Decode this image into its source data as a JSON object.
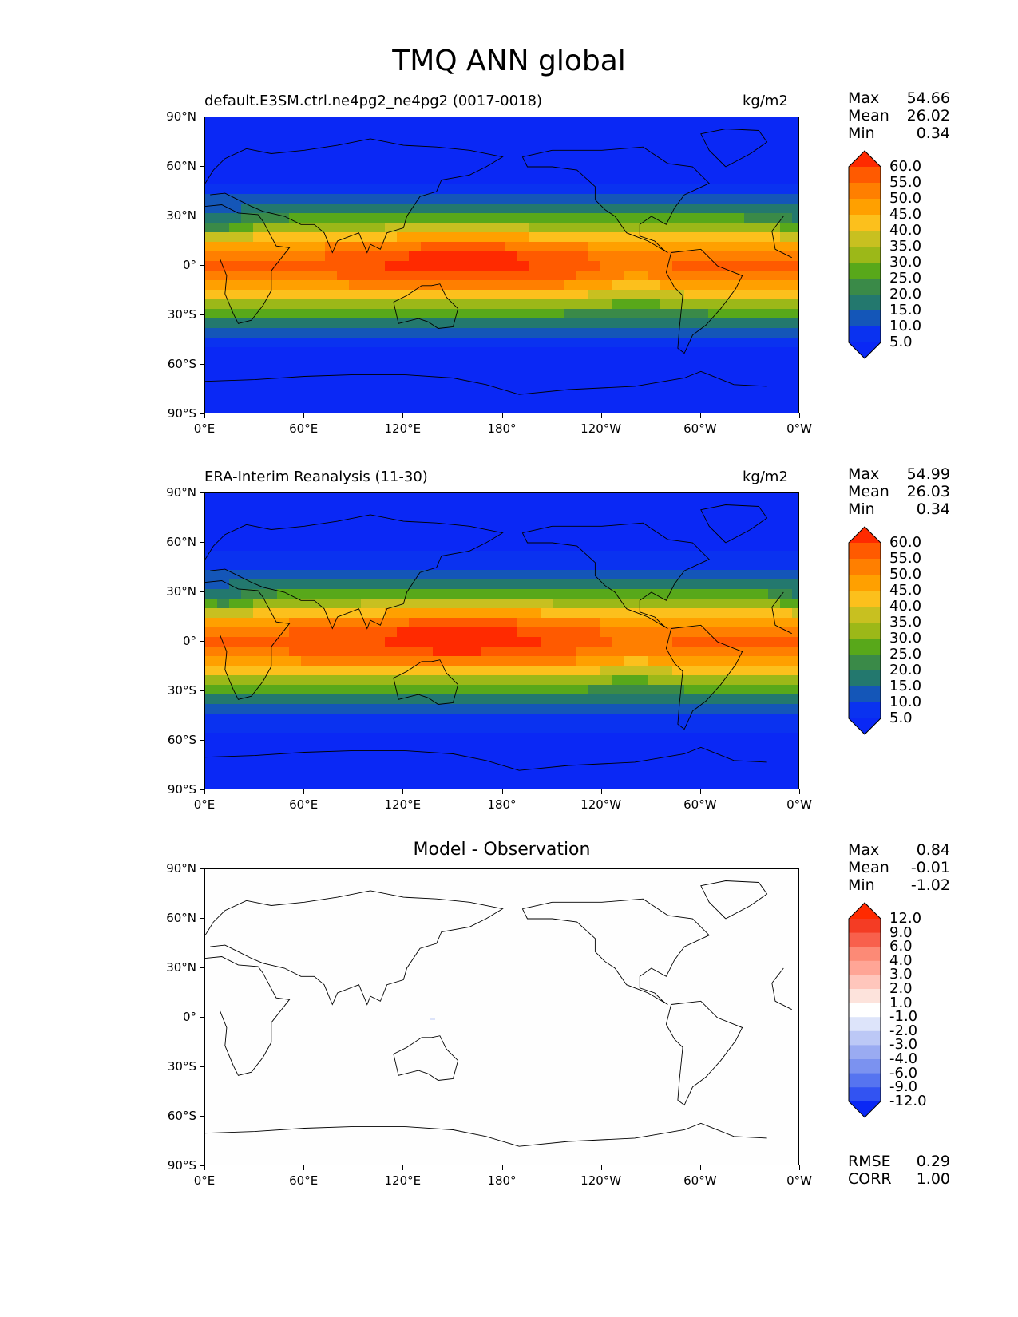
{
  "figure": {
    "title": "TMQ ANN global"
  },
  "axes": {
    "lat_ticks": [
      "90°N",
      "60°N",
      "30°N",
      "0°",
      "30°S",
      "60°S",
      "90°S"
    ],
    "lon_ticks": [
      "0°E",
      "60°E",
      "120°E",
      "180°",
      "120°W",
      "60°W",
      "0°W"
    ]
  },
  "panels": [
    {
      "id": "model",
      "title": "default.E3SM.ctrl.ne4pg2_ne4pg2 (0017-0018)",
      "units": "kg/m2",
      "stats": {
        "max_label": "Max",
        "max": "54.66",
        "mean_label": "Mean",
        "mean": "26.02",
        "min_label": "Min",
        "min": "0.34"
      }
    },
    {
      "id": "obs",
      "title": "ERA-Interim Reanalysis (11-30)",
      "units": "kg/m2",
      "stats": {
        "max_label": "Max",
        "max": "54.99",
        "mean_label": "Mean",
        "mean": "26.03",
        "min_label": "Min",
        "min": "0.34"
      }
    },
    {
      "id": "diff",
      "title": "Model - Observation",
      "units": "",
      "stats": {
        "max_label": "Max",
        "max": "0.84",
        "mean_label": "Mean",
        "mean": "-0.01",
        "min_label": "Min",
        "min": "-1.02"
      },
      "footer": {
        "rmse_label": "RMSE",
        "rmse": "0.29",
        "corr_label": "CORR",
        "corr": "1.00"
      }
    }
  ],
  "colorbars": {
    "field": {
      "labels": [
        "60.0",
        "55.0",
        "50.0",
        "45.0",
        "40.0",
        "35.0",
        "30.0",
        "25.0",
        "20.0",
        "15.0",
        "10.0",
        "5.0"
      ],
      "colors": [
        "#ff2a00",
        "#ff5a00",
        "#ff7f00",
        "#ffa000",
        "#fcc01c",
        "#c8c020",
        "#9cb818",
        "#58a81a",
        "#3a8a48",
        "#23786e",
        "#1456b8",
        "#0a32f0",
        "#0a28f5"
      ]
    },
    "diff": {
      "labels": [
        "12.0",
        "9.0",
        "6.0",
        "4.0",
        "3.0",
        "2.0",
        "1.0",
        "-1.0",
        "-2.0",
        "-3.0",
        "-4.0",
        "-6.0",
        "-9.0",
        "-12.0"
      ],
      "colors": [
        "#ff2a00",
        "#f43c24",
        "#f8604c",
        "#fc8a76",
        "#ffa596",
        "#ffc6bc",
        "#fde3dc",
        "#ffffff",
        "#dde4fa",
        "#bcc8f6",
        "#9aabf2",
        "#7b92f0",
        "#5674f0",
        "#3253f2",
        "#0a28f5"
      ]
    }
  }
}
